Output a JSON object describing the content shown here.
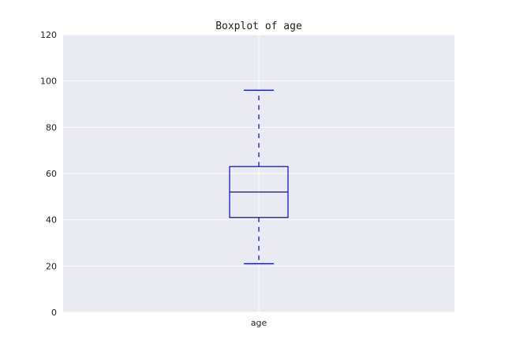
{
  "chart_data": {
    "type": "box",
    "title": "Boxplot of age",
    "xlabel": "",
    "ylabel": "",
    "categories": [
      "age"
    ],
    "ylim": [
      0,
      120
    ],
    "yticks": [
      0,
      20,
      40,
      60,
      80,
      100,
      120
    ],
    "grid": true,
    "series": [
      {
        "name": "age",
        "whisker_low": 21,
        "q1": 41,
        "median": 52,
        "q3": 63,
        "whisker_high": 96,
        "outliers": []
      }
    ]
  },
  "colors": {
    "plot_background": "#eaeaf2",
    "grid": "#ffffff",
    "box": "#0000ff",
    "text": "#222222"
  }
}
